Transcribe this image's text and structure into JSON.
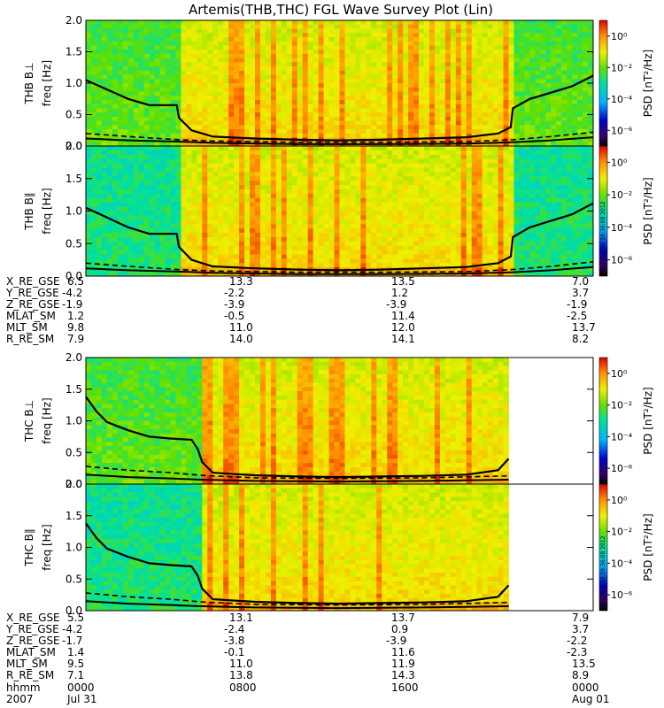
{
  "chart_data": {
    "type": "heatmap",
    "title": "Artemis(THB,THC) FGL Wave Survey Plot (Lin)",
    "xaxis": {
      "time_ticks": [
        "0000",
        "0800",
        "1600",
        "0000"
      ],
      "date_ticks": [
        "Jul 31",
        "",
        "",
        "Aug 01"
      ],
      "row_label": "hhmm",
      "year_label": "2007",
      "xlim_hours": [
        0,
        24
      ]
    },
    "colorbar": {
      "label": "PSD [nT²/Hz]",
      "scale": "log",
      "ticks": [
        "10⁰",
        "10⁻²",
        "10⁻⁴",
        "10⁻⁶"
      ],
      "range_exp": [
        -7,
        1
      ]
    },
    "stamp": "Thu Aug 30 19:36:08 2012",
    "panels": [
      {
        "probe": "THB",
        "component": "perp",
        "ylabel_probe": "THB B⊥",
        "ylabel_unit": "freq [Hz]",
        "ylim": [
          0,
          2.0
        ],
        "yticks": [
          "0.0",
          "0.5",
          "1.0",
          "1.5",
          "2.0"
        ],
        "activity_window_hours": [
          4.4,
          20.2
        ],
        "data_gap_hours": null,
        "curves": {
          "fce_upper": {
            "x": [
              0,
              1,
              2,
              3,
              4.3,
              4.4,
              5,
              6,
              8,
              10,
              12,
              14,
              16,
              18,
              19.5,
              20.1,
              20.2,
              21,
              22,
              23,
              24
            ],
            "y": [
              1.05,
              0.9,
              0.75,
              0.65,
              0.65,
              0.45,
              0.25,
              0.15,
              0.12,
              0.1,
              0.09,
              0.1,
              0.12,
              0.14,
              0.2,
              0.3,
              0.6,
              0.75,
              0.85,
              0.95,
              1.12
            ]
          },
          "fce_lower": {
            "x": [
              0,
              2,
              4.4,
              6,
              10,
              14,
              18,
              20.2,
              22,
              24
            ],
            "y": [
              0.12,
              0.09,
              0.07,
              0.05,
              0.03,
              0.03,
              0.04,
              0.06,
              0.09,
              0.14
            ]
          },
          "dashed": {
            "x": [
              0,
              2,
              4.4,
              6,
              10,
              14,
              18,
              20.2,
              22,
              24
            ],
            "y": [
              0.2,
              0.15,
              0.1,
              0.08,
              0.06,
              0.06,
              0.07,
              0.1,
              0.15,
              0.22
            ]
          }
        }
      },
      {
        "probe": "THB",
        "component": "parallel",
        "ylabel_probe": "THB B∥",
        "ylabel_unit": "freq [Hz]",
        "ylim": [
          0,
          2.0
        ],
        "yticks": [
          "0.0",
          "0.5",
          "1.0",
          "1.5",
          "2.0"
        ],
        "activity_window_hours": [
          4.4,
          20.2
        ],
        "data_gap_hours": null,
        "curves": {
          "fce_upper": {
            "x": [
              0,
              1,
              2,
              3,
              4.3,
              4.4,
              5,
              6,
              8,
              10,
              12,
              14,
              16,
              18,
              19.5,
              20.1,
              20.2,
              21,
              22,
              23,
              24
            ],
            "y": [
              1.05,
              0.9,
              0.75,
              0.65,
              0.65,
              0.45,
              0.25,
              0.15,
              0.12,
              0.1,
              0.09,
              0.1,
              0.12,
              0.14,
              0.2,
              0.3,
              0.6,
              0.75,
              0.85,
              0.95,
              1.12
            ]
          },
          "fce_lower": {
            "x": [
              0,
              2,
              4.4,
              6,
              10,
              14,
              18,
              20.2,
              22,
              24
            ],
            "y": [
              0.12,
              0.09,
              0.07,
              0.05,
              0.03,
              0.03,
              0.04,
              0.06,
              0.09,
              0.14
            ]
          },
          "dashed": {
            "x": [
              0,
              2,
              4.4,
              6,
              10,
              14,
              18,
              20.2,
              22,
              24
            ],
            "y": [
              0.2,
              0.15,
              0.1,
              0.08,
              0.06,
              0.06,
              0.07,
              0.1,
              0.15,
              0.22
            ]
          }
        }
      },
      {
        "probe": "THC",
        "component": "perp",
        "ylabel_probe": "THC B⊥",
        "ylabel_unit": "freq [Hz]",
        "ylim": [
          0,
          2.0
        ],
        "yticks": [
          "0.0",
          "0.5",
          "1.0",
          "1.5",
          "2.0"
        ],
        "activity_window_hours": [
          5.4,
          20.0
        ],
        "data_gap_hours": [
          20.1,
          24
        ],
        "curves": {
          "fce_upper": {
            "x": [
              0,
              0.5,
              1,
              2,
              3,
              4,
              5,
              5.3,
              5.5,
              6,
              8,
              10,
              12,
              14,
              16,
              18,
              19.5,
              20.0
            ],
            "y": [
              1.38,
              1.15,
              0.98,
              0.85,
              0.75,
              0.72,
              0.7,
              0.55,
              0.35,
              0.18,
              0.14,
              0.12,
              0.11,
              0.12,
              0.13,
              0.15,
              0.22,
              0.4
            ]
          },
          "fce_lower": {
            "x": [
              0,
              2,
              4,
              5.4,
              8,
              12,
              16,
              20.0
            ],
            "y": [
              0.15,
              0.11,
              0.09,
              0.07,
              0.05,
              0.04,
              0.05,
              0.07
            ]
          },
          "dashed": {
            "x": [
              0,
              2,
              4,
              5.4,
              8,
              12,
              16,
              20.0
            ],
            "y": [
              0.28,
              0.22,
              0.18,
              0.14,
              0.1,
              0.09,
              0.1,
              0.13
            ]
          }
        }
      },
      {
        "probe": "THC",
        "component": "parallel",
        "ylabel_probe": "THC B∥",
        "ylabel_unit": "freq [Hz]",
        "ylim": [
          0,
          2.0
        ],
        "yticks": [
          "0.0",
          "0.5",
          "1.0",
          "1.5",
          "2.0"
        ],
        "activity_window_hours": [
          5.4,
          20.0
        ],
        "data_gap_hours": [
          20.1,
          24
        ],
        "curves": {
          "fce_upper": {
            "x": [
              0,
              0.5,
              1,
              2,
              3,
              4,
              5,
              5.3,
              5.5,
              6,
              8,
              10,
              12,
              14,
              16,
              18,
              19.5,
              20.0
            ],
            "y": [
              1.38,
              1.15,
              0.98,
              0.85,
              0.75,
              0.72,
              0.7,
              0.55,
              0.35,
              0.18,
              0.14,
              0.12,
              0.11,
              0.12,
              0.13,
              0.15,
              0.22,
              0.4
            ]
          },
          "fce_lower": {
            "x": [
              0,
              2,
              4,
              5.4,
              8,
              12,
              16,
              20.0
            ],
            "y": [
              0.15,
              0.11,
              0.09,
              0.07,
              0.05,
              0.04,
              0.05,
              0.07
            ]
          },
          "dashed": {
            "x": [
              0,
              2,
              4,
              5.4,
              8,
              12,
              16,
              20.0
            ],
            "y": [
              0.28,
              0.22,
              0.18,
              0.14,
              0.1,
              0.09,
              0.1,
              0.13
            ]
          }
        }
      }
    ],
    "ephemeris_tables": [
      {
        "rows": [
          {
            "label": "X_RE_GSE",
            "values": [
              "6.5",
              "13.3",
              "13.5",
              "7.0"
            ]
          },
          {
            "label": "Y_RE_GSE",
            "values": [
              "-4.2",
              "-2.2",
              "1.2",
              "3.7"
            ]
          },
          {
            "label": "Z_RE_GSE",
            "values": [
              "-1.9",
              "-3.9",
              "-3.9",
              "-1.9"
            ]
          },
          {
            "label": "MLAT_SM",
            "values": [
              "1.2",
              "-0.5",
              "11.4",
              "-2.5"
            ]
          },
          {
            "label": "MLT_SM",
            "values": [
              "9.8",
              "11.0",
              "12.0",
              "13.7"
            ]
          },
          {
            "label": "R_RE_SM",
            "values": [
              "7.9",
              "14.0",
              "14.1",
              "8.2"
            ]
          }
        ]
      },
      {
        "rows": [
          {
            "label": "X_RE_GSE",
            "values": [
              "5.5",
              "13.1",
              "13.7",
              "7.9"
            ]
          },
          {
            "label": "Y_RE_GSE",
            "values": [
              "-4.2",
              "-2.4",
              "0.9",
              "3.7"
            ]
          },
          {
            "label": "Z_RE_GSE",
            "values": [
              "-1.7",
              "-3.8",
              "-3.9",
              "-2.2"
            ]
          },
          {
            "label": "MLAT_SM",
            "values": [
              "1.4",
              "-0.1",
              "11.6",
              "-2.3"
            ]
          },
          {
            "label": "MLT_SM",
            "values": [
              "9.5",
              "11.0",
              "11.9",
              "13.5"
            ]
          },
          {
            "label": "R_RE_SM",
            "values": [
              "7.1",
              "13.8",
              "14.3",
              "8.9"
            ]
          }
        ]
      }
    ]
  }
}
